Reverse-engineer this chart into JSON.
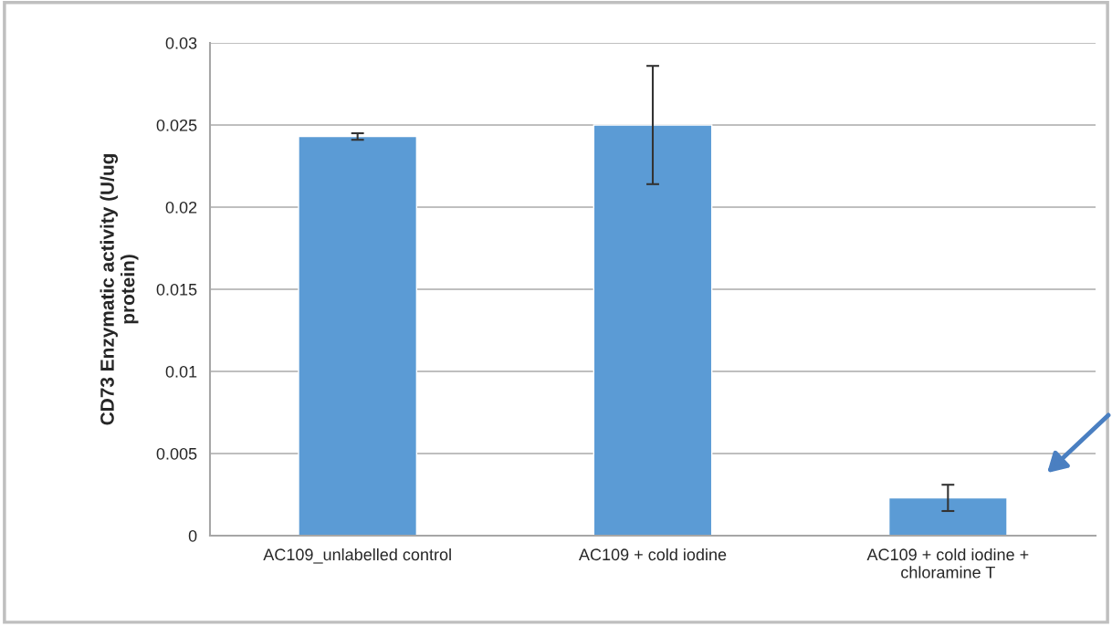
{
  "chart_data": {
    "type": "bar",
    "ylabel": "CD73 Enzymatic activity (U/ug\nprotein)",
    "categories": [
      "AC109_unlabelled control",
      "AC109 + cold iodine",
      "AC109 + cold iodine +\nchloramine T"
    ],
    "values": [
      0.0243,
      0.025,
      0.0023
    ],
    "errors": [
      0.0002,
      0.0036,
      0.0008
    ],
    "color": "#5b9bd5",
    "ylim": [
      0,
      0.03
    ],
    "yticks": [
      0,
      0.005,
      0.01,
      0.015,
      0.02,
      0.025,
      0.03
    ],
    "grid": "y",
    "legend": false
  }
}
